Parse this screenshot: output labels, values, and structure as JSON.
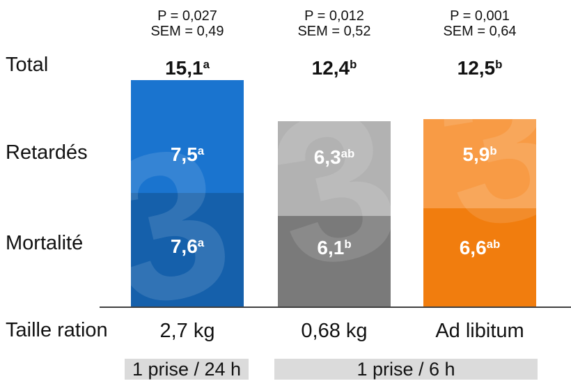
{
  "row_labels": {
    "total": "Total",
    "retardes": "Retardés",
    "mortalite": "Mortalité",
    "ration": "Taille ration"
  },
  "columns": [
    {
      "p": "P = 0,027",
      "sem": "SEM = 0,49",
      "total": {
        "text": "15,1",
        "sup": "a"
      },
      "retardes": {
        "text": "7,5",
        "sup": "a"
      },
      "mortalite": {
        "text": "7,6",
        "sup": "a"
      },
      "ration": "2,7 kg"
    },
    {
      "p": "P = 0,012",
      "sem": "SEM = 0,52",
      "total": {
        "text": "12,4",
        "sup": "b"
      },
      "retardes": {
        "text": "6,3",
        "sup": "ab"
      },
      "mortalite": {
        "text": "6,1",
        "sup": "b"
      },
      "ration": "0,68 kg"
    },
    {
      "p": "P = 0,001",
      "sem": "SEM = 0,64",
      "total": {
        "text": "12,5",
        "sup": "b"
      },
      "retardes": {
        "text": "5,9",
        "sup": "b"
      },
      "mortalite": {
        "text": "6,6",
        "sup": "ab"
      },
      "ration": "Ad libitum"
    }
  ],
  "bands": [
    {
      "label": "1 prise / 24 h"
    },
    {
      "label": "1 prise / 6 h"
    }
  ],
  "watermark": "3",
  "colors": {
    "blue_light": "#1a74cf",
    "blue_dark": "#1560ab",
    "gray_light": "#b2b2b2",
    "gray_dark": "#7a7a7a",
    "orange_light": "#f89b45",
    "orange_dark": "#f17d0e",
    "band_bg": "#dbdbdb",
    "axis": "#3f3f3f",
    "value_text": "#ffffff",
    "text": "#111111"
  },
  "chart_data": {
    "type": "bar",
    "stacked": true,
    "title": "",
    "xlabel": "Taille ration",
    "ylabel": "",
    "categories": [
      "2,7 kg",
      "0,68 kg",
      "Ad libitum"
    ],
    "series": [
      {
        "name": "Mortalité",
        "values": [
          7.6,
          6.1,
          6.6
        ]
      },
      {
        "name": "Retardés",
        "values": [
          7.5,
          6.3,
          5.9
        ]
      }
    ],
    "totals": [
      15.1,
      12.4,
      12.5
    ],
    "totals_significance": [
      "a",
      "b",
      "b"
    ],
    "retardes_significance": [
      "a",
      "ab",
      "b"
    ],
    "mortalite_significance": [
      "a",
      "b",
      "ab"
    ],
    "p_values": [
      "P = 0,027",
      "P = 0,012",
      "P = 0,001"
    ],
    "sem_values": [
      "SEM = 0,49",
      "SEM = 0,52",
      "SEM = 0,64"
    ],
    "group_bands": [
      {
        "label": "1 prise / 24 h",
        "bar_indexes": [
          0
        ]
      },
      {
        "label": "1 prise / 6 h",
        "bar_indexes": [
          1,
          2
        ]
      }
    ],
    "ylim": [
      0,
      15.1
    ],
    "grid": false,
    "legend_position": "left-row-labels"
  }
}
